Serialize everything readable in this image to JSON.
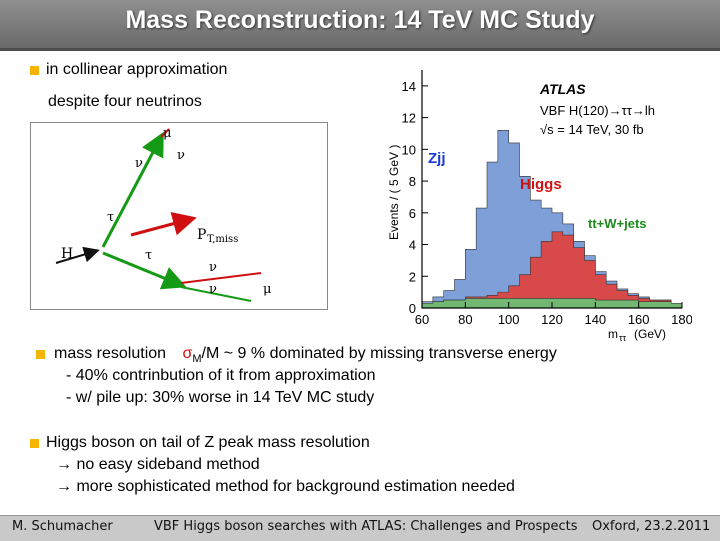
{
  "header": {
    "title": "Mass Reconstruction: 14 TeV MC Study"
  },
  "intro": {
    "bullet1": "in collinear approximation",
    "line2": "despite four neutrinos"
  },
  "diagram": {
    "labels": {
      "mu_top": "μ",
      "nu_mu": "ν",
      "nu_tau_top": "ν",
      "tau_plus": "τ",
      "tau_minus": "τ",
      "h": "H",
      "ptmiss": "P",
      "ptmiss_sub": "T,miss",
      "nu_tau_bot": "ν",
      "nu_mu_bot": "ν",
      "mu_minus": "μ"
    }
  },
  "plot": {
    "experiment": "ATLAS",
    "process": "VBF H(120)→ττ→lh",
    "energy": "√s = 14 TeV,   30 fb",
    "ylabel": "Events / ( 5 GeV )",
    "xlabel": "m",
    "xlabel_sub": "ττ",
    "xunit": "(GeV)",
    "label_zjj": "Zjj",
    "label_higgs": "Higgs",
    "label_bkg": "tt+W+jets"
  },
  "chart_data": {
    "type": "area",
    "x": [
      60,
      65,
      70,
      75,
      80,
      85,
      90,
      95,
      100,
      105,
      110,
      115,
      120,
      125,
      130,
      135,
      140,
      145,
      150,
      155,
      160,
      165,
      170,
      175
    ],
    "series": [
      {
        "name": "Zjj",
        "values": [
          0.1,
          0.3,
          0.6,
          1.3,
          3.0,
          5.6,
          8.4,
          10.2,
          9.0,
          6.2,
          3.6,
          2.1,
          1.2,
          0.7,
          0.4,
          0.3,
          0.2,
          0.2,
          0.1,
          0.1,
          0.1,
          0.0,
          0.0,
          0.0
        ]
      },
      {
        "name": "Higgs",
        "values": [
          0.0,
          0.0,
          0.0,
          0.0,
          0.1,
          0.1,
          0.2,
          0.4,
          0.8,
          1.5,
          2.6,
          3.6,
          4.2,
          4.0,
          3.2,
          2.4,
          1.6,
          1.0,
          0.6,
          0.3,
          0.2,
          0.1,
          0.1,
          0.0
        ]
      },
      {
        "name": "tt+W+jets",
        "values": [
          0.3,
          0.4,
          0.5,
          0.5,
          0.6,
          0.6,
          0.6,
          0.6,
          0.6,
          0.6,
          0.6,
          0.6,
          0.6,
          0.6,
          0.6,
          0.6,
          0.5,
          0.5,
          0.5,
          0.5,
          0.4,
          0.4,
          0.4,
          0.3
        ]
      }
    ],
    "xticks": [
      60,
      80,
      100,
      120,
      140,
      160,
      180
    ],
    "yticks": [
      0,
      2,
      4,
      6,
      8,
      10,
      12,
      14
    ],
    "xlim": [
      60,
      180
    ],
    "ylim": [
      0,
      15
    ],
    "xlabel": "mττ (GeV)",
    "ylabel": "Events / ( 5 GeV )",
    "colors": {
      "Zjj": "#7f9fd8",
      "Higgs": "#d84a4a",
      "tt+W+jets": "#72b872"
    }
  },
  "bullets": {
    "b2_line1a": "mass resolution",
    "b2_sigma": "σ",
    "b2_sub": "M",
    "b2_line1b": "/M ~ 9 % dominated by missing transverse energy",
    "b2_line2": "- 40% contrinbution  of it from approximation",
    "b2_line3": "- w/ pile up:   30% worse in 14 TeV MC study",
    "b3_line1": "Higgs boson on tail of Z peak mass resolution",
    "b3_line2": "no easy sideband method",
    "b3_line3": "more sophisticated  method for background estimation needed",
    "arrow": "→"
  },
  "footer": {
    "left": "M. Schumacher",
    "center": "VBF Higgs boson searches with ATLAS: Challenges and Prospects",
    "right": "Oxford, 23.2.2011"
  }
}
